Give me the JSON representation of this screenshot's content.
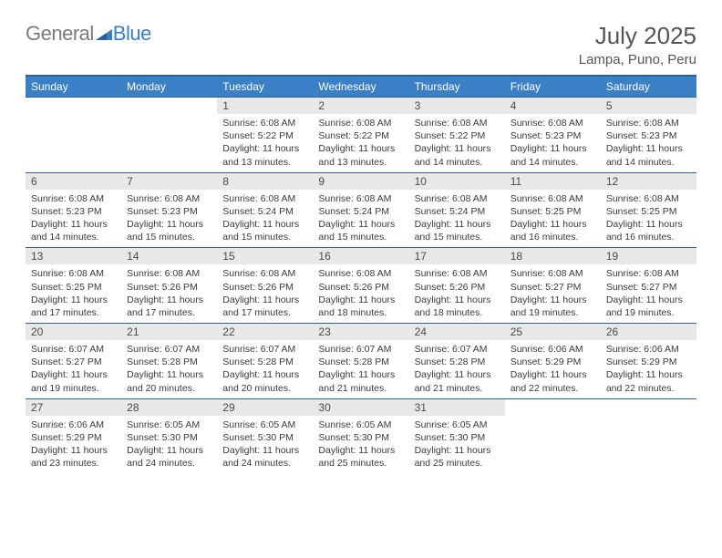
{
  "brand": {
    "word1": "General",
    "word2": "Blue"
  },
  "title": "July 2025",
  "location": "Lampa, Puno, Peru",
  "colors": {
    "header_bg": "#3b7fc4",
    "header_border": "#2b5f99",
    "daynum_bg": "#e8e8e8",
    "text": "#333333"
  },
  "weekdays": [
    "Sunday",
    "Monday",
    "Tuesday",
    "Wednesday",
    "Thursday",
    "Friday",
    "Saturday"
  ],
  "weeks": [
    [
      {
        "empty": true
      },
      {
        "empty": true
      },
      {
        "day": "1",
        "sunrise": "Sunrise: 6:08 AM",
        "sunset": "Sunset: 5:22 PM",
        "daylight1": "Daylight: 11 hours",
        "daylight2": "and 13 minutes."
      },
      {
        "day": "2",
        "sunrise": "Sunrise: 6:08 AM",
        "sunset": "Sunset: 5:22 PM",
        "daylight1": "Daylight: 11 hours",
        "daylight2": "and 13 minutes."
      },
      {
        "day": "3",
        "sunrise": "Sunrise: 6:08 AM",
        "sunset": "Sunset: 5:22 PM",
        "daylight1": "Daylight: 11 hours",
        "daylight2": "and 14 minutes."
      },
      {
        "day": "4",
        "sunrise": "Sunrise: 6:08 AM",
        "sunset": "Sunset: 5:23 PM",
        "daylight1": "Daylight: 11 hours",
        "daylight2": "and 14 minutes."
      },
      {
        "day": "5",
        "sunrise": "Sunrise: 6:08 AM",
        "sunset": "Sunset: 5:23 PM",
        "daylight1": "Daylight: 11 hours",
        "daylight2": "and 14 minutes."
      }
    ],
    [
      {
        "day": "6",
        "sunrise": "Sunrise: 6:08 AM",
        "sunset": "Sunset: 5:23 PM",
        "daylight1": "Daylight: 11 hours",
        "daylight2": "and 14 minutes."
      },
      {
        "day": "7",
        "sunrise": "Sunrise: 6:08 AM",
        "sunset": "Sunset: 5:23 PM",
        "daylight1": "Daylight: 11 hours",
        "daylight2": "and 15 minutes."
      },
      {
        "day": "8",
        "sunrise": "Sunrise: 6:08 AM",
        "sunset": "Sunset: 5:24 PM",
        "daylight1": "Daylight: 11 hours",
        "daylight2": "and 15 minutes."
      },
      {
        "day": "9",
        "sunrise": "Sunrise: 6:08 AM",
        "sunset": "Sunset: 5:24 PM",
        "daylight1": "Daylight: 11 hours",
        "daylight2": "and 15 minutes."
      },
      {
        "day": "10",
        "sunrise": "Sunrise: 6:08 AM",
        "sunset": "Sunset: 5:24 PM",
        "daylight1": "Daylight: 11 hours",
        "daylight2": "and 15 minutes."
      },
      {
        "day": "11",
        "sunrise": "Sunrise: 6:08 AM",
        "sunset": "Sunset: 5:25 PM",
        "daylight1": "Daylight: 11 hours",
        "daylight2": "and 16 minutes."
      },
      {
        "day": "12",
        "sunrise": "Sunrise: 6:08 AM",
        "sunset": "Sunset: 5:25 PM",
        "daylight1": "Daylight: 11 hours",
        "daylight2": "and 16 minutes."
      }
    ],
    [
      {
        "day": "13",
        "sunrise": "Sunrise: 6:08 AM",
        "sunset": "Sunset: 5:25 PM",
        "daylight1": "Daylight: 11 hours",
        "daylight2": "and 17 minutes."
      },
      {
        "day": "14",
        "sunrise": "Sunrise: 6:08 AM",
        "sunset": "Sunset: 5:26 PM",
        "daylight1": "Daylight: 11 hours",
        "daylight2": "and 17 minutes."
      },
      {
        "day": "15",
        "sunrise": "Sunrise: 6:08 AM",
        "sunset": "Sunset: 5:26 PM",
        "daylight1": "Daylight: 11 hours",
        "daylight2": "and 17 minutes."
      },
      {
        "day": "16",
        "sunrise": "Sunrise: 6:08 AM",
        "sunset": "Sunset: 5:26 PM",
        "daylight1": "Daylight: 11 hours",
        "daylight2": "and 18 minutes."
      },
      {
        "day": "17",
        "sunrise": "Sunrise: 6:08 AM",
        "sunset": "Sunset: 5:26 PM",
        "daylight1": "Daylight: 11 hours",
        "daylight2": "and 18 minutes."
      },
      {
        "day": "18",
        "sunrise": "Sunrise: 6:08 AM",
        "sunset": "Sunset: 5:27 PM",
        "daylight1": "Daylight: 11 hours",
        "daylight2": "and 19 minutes."
      },
      {
        "day": "19",
        "sunrise": "Sunrise: 6:08 AM",
        "sunset": "Sunset: 5:27 PM",
        "daylight1": "Daylight: 11 hours",
        "daylight2": "and 19 minutes."
      }
    ],
    [
      {
        "day": "20",
        "sunrise": "Sunrise: 6:07 AM",
        "sunset": "Sunset: 5:27 PM",
        "daylight1": "Daylight: 11 hours",
        "daylight2": "and 19 minutes."
      },
      {
        "day": "21",
        "sunrise": "Sunrise: 6:07 AM",
        "sunset": "Sunset: 5:28 PM",
        "daylight1": "Daylight: 11 hours",
        "daylight2": "and 20 minutes."
      },
      {
        "day": "22",
        "sunrise": "Sunrise: 6:07 AM",
        "sunset": "Sunset: 5:28 PM",
        "daylight1": "Daylight: 11 hours",
        "daylight2": "and 20 minutes."
      },
      {
        "day": "23",
        "sunrise": "Sunrise: 6:07 AM",
        "sunset": "Sunset: 5:28 PM",
        "daylight1": "Daylight: 11 hours",
        "daylight2": "and 21 minutes."
      },
      {
        "day": "24",
        "sunrise": "Sunrise: 6:07 AM",
        "sunset": "Sunset: 5:28 PM",
        "daylight1": "Daylight: 11 hours",
        "daylight2": "and 21 minutes."
      },
      {
        "day": "25",
        "sunrise": "Sunrise: 6:06 AM",
        "sunset": "Sunset: 5:29 PM",
        "daylight1": "Daylight: 11 hours",
        "daylight2": "and 22 minutes."
      },
      {
        "day": "26",
        "sunrise": "Sunrise: 6:06 AM",
        "sunset": "Sunset: 5:29 PM",
        "daylight1": "Daylight: 11 hours",
        "daylight2": "and 22 minutes."
      }
    ],
    [
      {
        "day": "27",
        "sunrise": "Sunrise: 6:06 AM",
        "sunset": "Sunset: 5:29 PM",
        "daylight1": "Daylight: 11 hours",
        "daylight2": "and 23 minutes."
      },
      {
        "day": "28",
        "sunrise": "Sunrise: 6:05 AM",
        "sunset": "Sunset: 5:30 PM",
        "daylight1": "Daylight: 11 hours",
        "daylight2": "and 24 minutes."
      },
      {
        "day": "29",
        "sunrise": "Sunrise: 6:05 AM",
        "sunset": "Sunset: 5:30 PM",
        "daylight1": "Daylight: 11 hours",
        "daylight2": "and 24 minutes."
      },
      {
        "day": "30",
        "sunrise": "Sunrise: 6:05 AM",
        "sunset": "Sunset: 5:30 PM",
        "daylight1": "Daylight: 11 hours",
        "daylight2": "and 25 minutes."
      },
      {
        "day": "31",
        "sunrise": "Sunrise: 6:05 AM",
        "sunset": "Sunset: 5:30 PM",
        "daylight1": "Daylight: 11 hours",
        "daylight2": "and 25 minutes."
      },
      {
        "empty": true
      },
      {
        "empty": true
      }
    ]
  ]
}
